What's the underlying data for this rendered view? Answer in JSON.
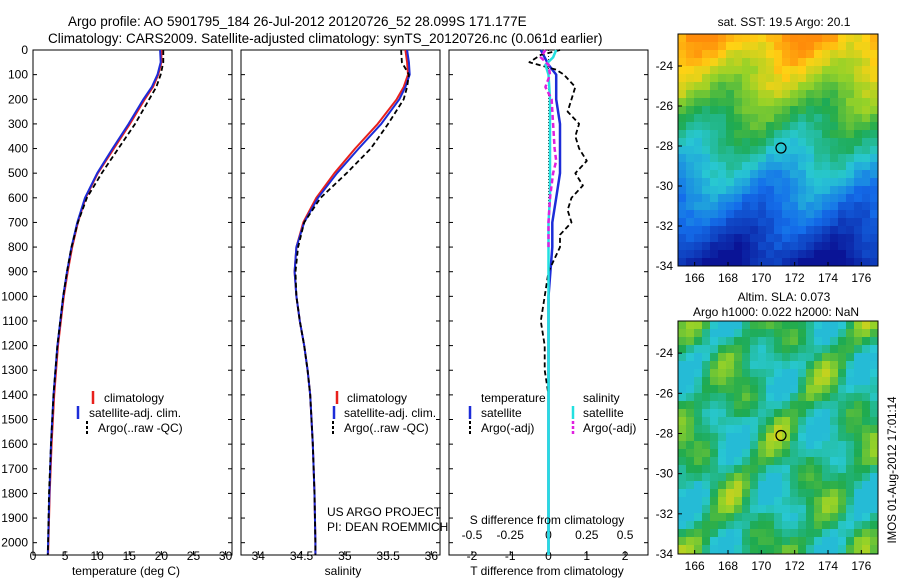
{
  "header": {
    "line1": "Argo profile: AO 5901795_184 26-Jul-2012 20120726_52 28.099S 171.177E",
    "line2": "Climatology: CARS2009. Satellite-adjusted climatology: synTS_20120726.nc (0.061d earlier)"
  },
  "watermark": "IMOS 01-Aug-2012 17:01:14",
  "project_note": {
    "line1": "US ARGO PROJECT",
    "line2": "PI: DEAN ROEMMICH"
  },
  "colors": {
    "climatology": "#e8201c",
    "satellite": "#1c2cd8",
    "argo": "#000000",
    "sal_satellite": "#22e0e0",
    "sal_argo": "#e020e0"
  },
  "chart_data": [
    {
      "type": "line",
      "id": "temperature",
      "xlabel": "temperature (deg C)",
      "xlim": [
        0,
        31
      ],
      "xticks": [
        0,
        5,
        10,
        15,
        20,
        25,
        30
      ],
      "ylim": [
        0,
        2050
      ],
      "ylabel_ticks": [
        0,
        100,
        200,
        300,
        400,
        500,
        600,
        700,
        800,
        900,
        1000,
        1100,
        1200,
        1300,
        1400,
        1500,
        1600,
        1700,
        1800,
        1900,
        2000
      ],
      "legend": [
        "climatology",
        "satellite-adj. clim.",
        "Argo(..raw -QC)"
      ],
      "depth": [
        0,
        50,
        100,
        150,
        200,
        300,
        400,
        500,
        600,
        700,
        800,
        900,
        1000,
        1200,
        1400,
        1600,
        1800,
        2000,
        2050
      ],
      "series": [
        {
          "name": "climatology",
          "values": [
            20.0,
            20.0,
            19.5,
            18.7,
            17.4,
            15.1,
            12.6,
            10.1,
            8.2,
            7.0,
            6.1,
            5.4,
            4.8,
            3.9,
            3.3,
            2.9,
            2.6,
            2.4,
            2.35
          ]
        },
        {
          "name": "satellite-adj. clim.",
          "values": [
            19.8,
            19.9,
            19.4,
            18.5,
            17.2,
            14.9,
            12.4,
            10.0,
            8.1,
            6.9,
            6.0,
            5.3,
            4.7,
            3.8,
            3.2,
            2.8,
            2.55,
            2.35,
            2.3
          ]
        },
        {
          "name": "Argo(..raw -QC)",
          "values": [
            20.3,
            20.3,
            19.9,
            19.2,
            18.1,
            15.9,
            13.3,
            10.7,
            8.4,
            7.0,
            6.0,
            5.3,
            4.7,
            3.8,
            3.2,
            2.8,
            2.5,
            2.35,
            2.3
          ]
        }
      ]
    },
    {
      "type": "line",
      "id": "salinity",
      "xlabel": "salinity",
      "xlim": [
        33.8,
        36.1
      ],
      "xticks": [
        34,
        34.5,
        35,
        35.5,
        36
      ],
      "ylim": [
        0,
        2050
      ],
      "legend": [
        "climatology",
        "satellite-adj. clim.",
        "Argo(..raw -QC)"
      ],
      "depth": [
        0,
        50,
        100,
        150,
        200,
        300,
        400,
        500,
        600,
        700,
        800,
        900,
        1000,
        1100,
        1200,
        1300,
        1400,
        1600,
        1800,
        2000,
        2050
      ],
      "series": [
        {
          "name": "climatology",
          "values": [
            35.7,
            35.72,
            35.73,
            35.68,
            35.6,
            35.38,
            35.12,
            34.88,
            34.67,
            34.52,
            34.44,
            34.42,
            34.44,
            34.48,
            34.53,
            34.57,
            34.6,
            34.63,
            34.65,
            34.66,
            34.66
          ]
        },
        {
          "name": "satellite-adj. clim.",
          "values": [
            35.72,
            35.74,
            35.75,
            35.7,
            35.63,
            35.42,
            35.16,
            34.91,
            34.69,
            34.53,
            34.44,
            34.42,
            34.44,
            34.48,
            34.53,
            34.57,
            34.6,
            34.63,
            34.65,
            34.66,
            34.66
          ]
        },
        {
          "name": "Argo(..raw -QC)",
          "values": [
            35.65,
            35.66,
            35.74,
            35.72,
            35.68,
            35.5,
            35.3,
            35.02,
            34.72,
            34.53,
            34.46,
            34.43,
            34.44,
            34.48,
            34.53,
            34.57,
            34.6,
            34.63,
            34.65,
            34.66,
            34.66
          ]
        }
      ]
    },
    {
      "type": "line",
      "id": "difference",
      "xlabel": "T difference from climatology",
      "xlabel2": "S difference from climatology",
      "xlim": [
        -2.6,
        2.6
      ],
      "xticks": [
        -2,
        -1,
        0,
        1,
        2
      ],
      "xticks_labels": [
        "-2",
        "-1",
        "0",
        "1",
        "2"
      ],
      "sticks_labels": [
        "-0.5",
        "-0.25",
        "0",
        "0.25",
        "0.5"
      ],
      "ylim": [
        0,
        2050
      ],
      "legend_titles": [
        "temperature",
        "salinity"
      ],
      "legend": [
        "satellite",
        "Argo(-adj)",
        "satellite",
        "Argo(-adj)"
      ],
      "series": [
        {
          "name": "satellite",
          "group": "temperature",
          "depth": [
            0,
            30,
            60,
            100,
            200,
            300,
            400,
            500,
            600,
            700,
            800,
            900,
            1000,
            1200,
            1400,
            1600,
            1800,
            2000,
            2050
          ],
          "values": [
            -0.2,
            -0.1,
            0.0,
            0.2,
            0.2,
            0.3,
            0.3,
            0.3,
            0.2,
            0.1,
            0.1,
            0.05,
            0.0,
            0.0,
            0.0,
            0.0,
            0.0,
            0.0,
            0.0
          ]
        },
        {
          "name": "Argo(-adj)",
          "group": "temperature",
          "depth": [
            0,
            20,
            50,
            80,
            100,
            150,
            200,
            250,
            300,
            350,
            400,
            450,
            500,
            550,
            600,
            650,
            700,
            750,
            800,
            900,
            1000,
            1100,
            1200,
            1300,
            1400,
            1500,
            1600,
            1800,
            2000,
            2050
          ],
          "values": [
            0.3,
            -0.2,
            -0.5,
            0.2,
            0.4,
            0.7,
            0.6,
            0.5,
            0.8,
            0.7,
            0.8,
            1.0,
            0.7,
            0.9,
            0.6,
            0.5,
            0.6,
            0.3,
            0.3,
            0.0,
            -0.1,
            -0.2,
            -0.1,
            -0.1,
            0.0,
            0.0,
            0.0,
            0.0,
            0.0,
            0.0
          ]
        },
        {
          "name": "satellite",
          "group": "salinity",
          "depth": [
            0,
            30,
            60,
            100,
            200,
            300,
            400,
            500,
            600,
            700,
            800,
            900,
            1000,
            1200,
            1400,
            1600,
            1800,
            2000,
            2050
          ],
          "values": [
            0.05,
            0.03,
            -0.02,
            0.0,
            0.01,
            0.01,
            0.01,
            0.01,
            0.01,
            0.0,
            0.0,
            0.0,
            0.0,
            0.0,
            0.0,
            0.0,
            0.0,
            0.0,
            0.0
          ]
        },
        {
          "name": "Argo(-adj)",
          "group": "salinity",
          "depth": [
            0,
            30,
            60,
            100,
            150,
            200,
            300,
            400,
            450,
            500,
            600,
            700,
            800
          ],
          "values": [
            -0.02,
            -0.05,
            0.0,
            0.01,
            -0.02,
            0.02,
            0.03,
            0.04,
            0.05,
            0.03,
            0.01,
            0.0,
            0.0
          ]
        }
      ]
    },
    {
      "type": "heatmap",
      "id": "sst_map",
      "title": "sat. SST: 19.5 Argo: 20.1",
      "xticks": [
        166,
        168,
        170,
        172,
        174,
        176
      ],
      "yticks": [
        -24,
        -26,
        -28,
        -30,
        -32,
        -34
      ],
      "xlim": [
        165,
        177
      ],
      "ylim": [
        -34,
        -22.4
      ],
      "argo_position": [
        171.18,
        -28.1
      ]
    },
    {
      "type": "heatmap",
      "id": "sla_map",
      "title": "Altim. SLA: 0.073",
      "title2": "Argo h1000: 0.022 h2000: NaN",
      "xticks": [
        166,
        168,
        170,
        172,
        174,
        176
      ],
      "yticks": [
        -24,
        -26,
        -28,
        -30,
        -32,
        -34
      ],
      "xlim": [
        165,
        177
      ],
      "ylim": [
        -34,
        -22.4
      ],
      "argo_position": [
        171.18,
        -28.1
      ]
    }
  ]
}
